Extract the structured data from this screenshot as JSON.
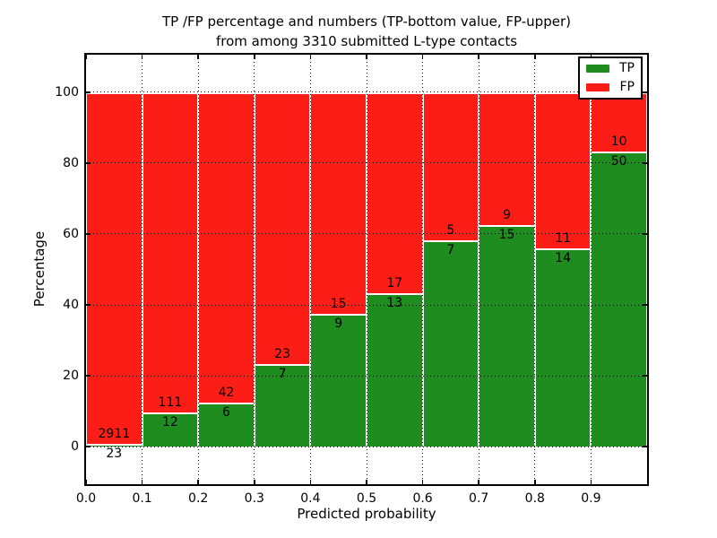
{
  "figure": {
    "title_line1": "TP /FP percentage and numbers (TP-bottom value, FP-upper)",
    "title_line2": "from among 3310 submitted L-type contacts"
  },
  "chart_data": {
    "type": "bar",
    "stacked": true,
    "normalization": "each bin scaled to 100%, labels show raw counts (TP bottom, FP upper)",
    "title": "TP /FP percentage and numbers (TP-bottom value, FP-upper) from among 3310 submitted L-type contacts",
    "xlabel": "Predicted probability",
    "ylabel": "Percentage",
    "total_contacts": 3310,
    "bin_edges": [
      0.0,
      0.1,
      0.2,
      0.3,
      0.4,
      0.5,
      0.6,
      0.7,
      0.8,
      0.9,
      1.0
    ],
    "categories": [
      "0.0-0.1",
      "0.1-0.2",
      "0.2-0.3",
      "0.3-0.4",
      "0.4-0.5",
      "0.5-0.6",
      "0.6-0.7",
      "0.7-0.8",
      "0.8-0.9",
      "0.9-1.0"
    ],
    "series": [
      {
        "name": "TP",
        "color": "#1e8c1e",
        "counts": [
          23,
          12,
          6,
          7,
          9,
          13,
          7,
          15,
          14,
          50
        ]
      },
      {
        "name": "FP",
        "color": "#fc1e16",
        "counts": [
          2911,
          111,
          42,
          23,
          15,
          17,
          5,
          9,
          11,
          10
        ]
      }
    ],
    "tp_percent_of_bin": [
      0.78,
      9.76,
      12.5,
      23.33,
      37.5,
      43.33,
      58.33,
      62.5,
      56.0,
      83.33
    ],
    "xticks": [
      "0.0",
      "0.1",
      "0.2",
      "0.3",
      "0.4",
      "0.5",
      "0.6",
      "0.7",
      "0.8",
      "0.9"
    ],
    "yticks": [
      0,
      20,
      40,
      60,
      80,
      100
    ],
    "xlim": [
      0.0,
      1.0
    ],
    "ylim": [
      -10.6,
      110.6
    ],
    "grid": true,
    "grid_style": "dotted",
    "legend": {
      "position": "upper right",
      "items": [
        {
          "label": "TP",
          "color": "#1e8c1e"
        },
        {
          "label": "FP",
          "color": "#fc1e16"
        }
      ]
    }
  }
}
